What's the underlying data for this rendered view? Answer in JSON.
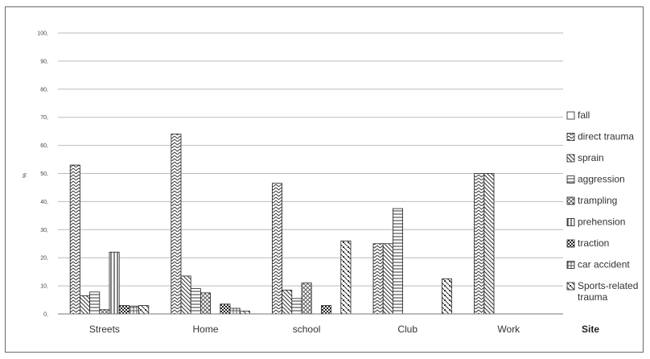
{
  "chart_data": {
    "type": "bar",
    "title": "",
    "xlabel": "Site",
    "ylabel": "%",
    "ylim": [
      0,
      100
    ],
    "yticks": [
      "0,",
      "10,",
      "20,",
      "30,",
      "40,",
      "50,",
      "60,",
      "70,",
      "80,",
      "90,",
      "100,"
    ],
    "grid": true,
    "legend_position": "right",
    "categories": [
      "Streets",
      "Home",
      "school",
      "Club",
      "Work"
    ],
    "series": [
      {
        "name": "fall",
        "pattern": "blank",
        "values": [
          0,
          0,
          0,
          0,
          0
        ]
      },
      {
        "name": "direct trauma",
        "pattern": "zigzag",
        "values": [
          53,
          64,
          46.5,
          25,
          50
        ]
      },
      {
        "name": "sprain",
        "pattern": "backdiag",
        "values": [
          6.5,
          13.5,
          8.5,
          25,
          50
        ]
      },
      {
        "name": "aggression",
        "pattern": "horiz",
        "values": [
          7.8,
          9,
          5.5,
          37.5,
          0
        ]
      },
      {
        "name": "trampling",
        "pattern": "crosshatch",
        "values": [
          1.5,
          7.5,
          11,
          0,
          0
        ]
      },
      {
        "name": "prehension",
        "pattern": "vert",
        "values": [
          22,
          0,
          0,
          0,
          0
        ]
      },
      {
        "name": "traction",
        "pattern": "checker",
        "values": [
          3,
          3.5,
          3,
          0,
          0
        ]
      },
      {
        "name": "car accident",
        "pattern": "plaid",
        "values": [
          2.8,
          2,
          0,
          0,
          0
        ]
      },
      {
        "name": "Sports-related trauma",
        "pattern": "checker2",
        "values": [
          3,
          1,
          26,
          12.5,
          0
        ]
      }
    ]
  },
  "colors": {
    "frame": "#6a6a6a",
    "grid": "#bbbbbb",
    "bar_stroke": "#222222",
    "text": "#333333"
  }
}
